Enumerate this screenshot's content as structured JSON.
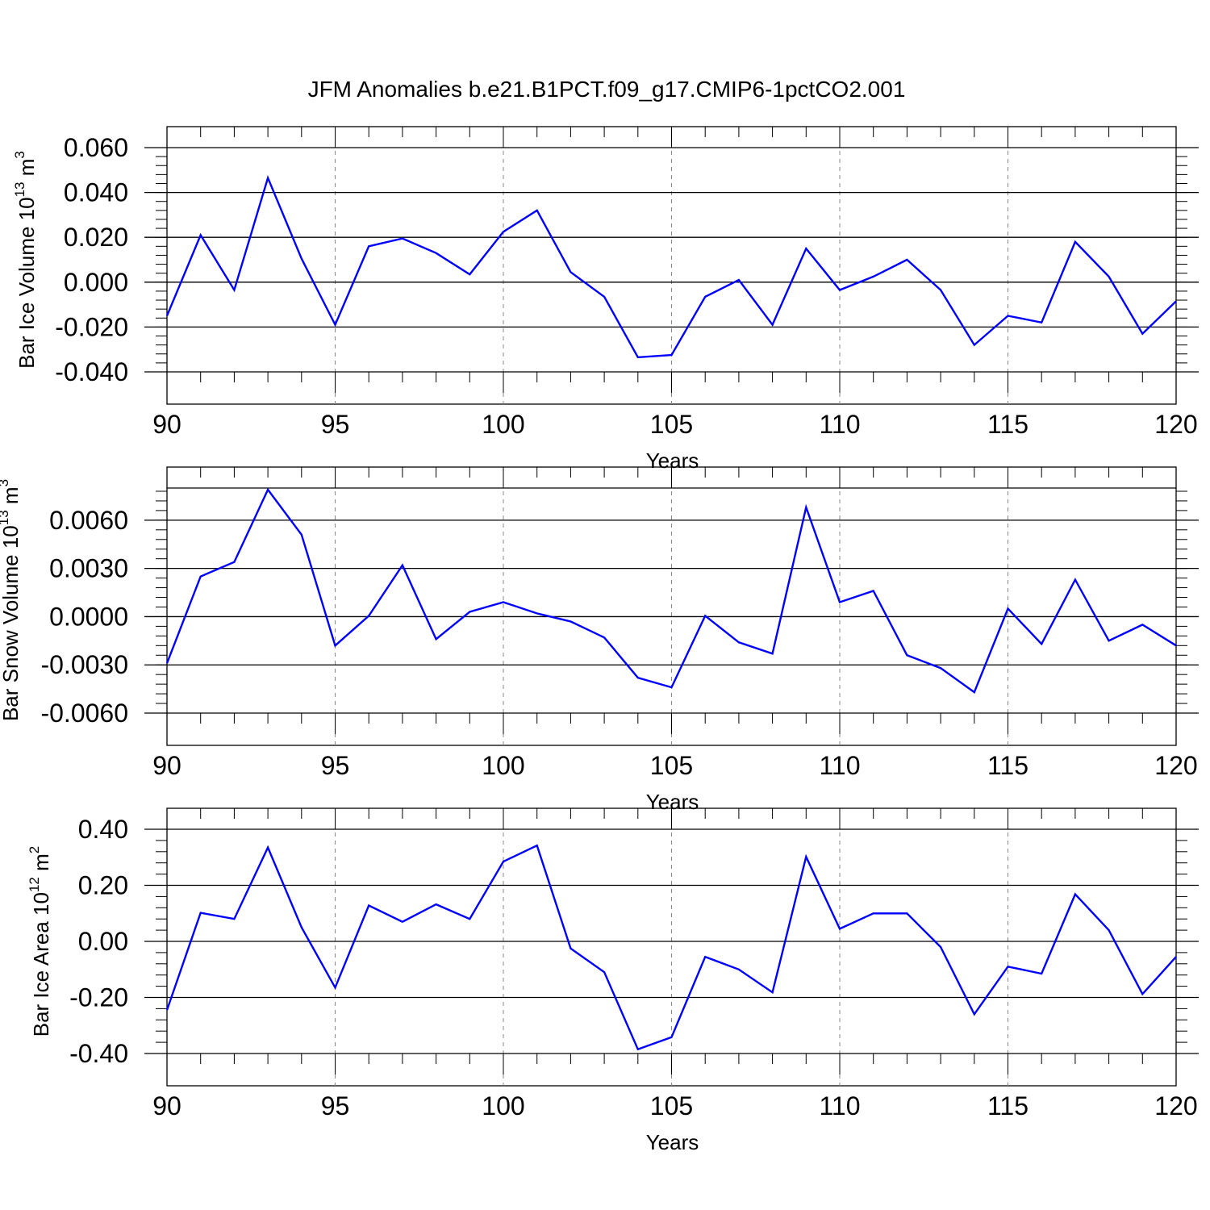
{
  "title": "JFM Anomalies b.e21.B1PCT.f09_g17.CMIP6-1pctCO2.001",
  "line_color": "#0000ff",
  "chart_data": [
    {
      "type": "line",
      "ylabel": "Bar Ice Volume",
      "ylabel_unit_base": "10",
      "ylabel_unit_exp": "13",
      "ylabel_unit_tail": " m",
      "ylabel_unit_tail_exp": "3",
      "xlabel": "Years",
      "xlim": [
        90,
        120
      ],
      "xticks": [
        90,
        95,
        100,
        105,
        110,
        115,
        120
      ],
      "ylim": [
        -0.04,
        0.06
      ],
      "yticks": [
        -0.04,
        -0.02,
        0.0,
        0.02,
        0.04,
        0.06
      ],
      "ytick_labels": [
        "-0.040",
        "-0.020",
        "0.000",
        "0.020",
        "0.040",
        "0.060"
      ],
      "x": [
        90,
        91,
        92,
        93,
        94,
        95,
        96,
        97,
        98,
        99,
        100,
        101,
        102,
        103,
        104,
        105,
        106,
        107,
        108,
        109,
        110,
        111,
        112,
        113,
        114,
        115,
        116,
        117,
        118,
        119,
        120
      ],
      "y": [
        -0.015,
        0.021,
        -0.0035,
        0.0465,
        0.0105,
        -0.019,
        0.016,
        0.0195,
        0.013,
        0.0035,
        0.0225,
        0.032,
        0.0045,
        -0.0065,
        -0.0335,
        -0.0325,
        -0.0065,
        0.001,
        -0.019,
        0.015,
        -0.0035,
        0.0025,
        0.01,
        -0.0035,
        -0.028,
        -0.015,
        -0.018,
        0.018,
        0.0025,
        -0.023,
        -0.0085
      ]
    },
    {
      "type": "line",
      "ylabel": "Bar Snow Volume",
      "ylabel_unit_base": "10",
      "ylabel_unit_exp": "13",
      "ylabel_unit_tail": " m",
      "ylabel_unit_tail_exp": "3",
      "xlabel": "Years",
      "xlim": [
        90,
        120
      ],
      "xticks": [
        90,
        95,
        100,
        105,
        110,
        115,
        120
      ],
      "ylim": [
        -0.006,
        0.008
      ],
      "yticks": [
        -0.006,
        -0.003,
        0.0,
        0.003,
        0.006
      ],
      "ytick_labels": [
        "-0.0060",
        "-0.0030",
        "0.0000",
        "0.0030",
        "0.0060"
      ],
      "x": [
        90,
        91,
        92,
        93,
        94,
        95,
        96,
        97,
        98,
        99,
        100,
        101,
        102,
        103,
        104,
        105,
        106,
        107,
        108,
        109,
        110,
        111,
        112,
        113,
        114,
        115,
        116,
        117,
        118,
        119,
        120
      ],
      "y": [
        -0.0029,
        0.0025,
        0.0034,
        0.0079,
        0.0051,
        -0.0018,
        5e-05,
        0.0032,
        -0.0014,
        0.0003,
        0.0009,
        0.0002,
        -0.0003,
        -0.0013,
        -0.0038,
        -0.0044,
        5e-05,
        -0.0016,
        -0.0023,
        0.0068,
        0.0009,
        0.0016,
        -0.0024,
        -0.0032,
        -0.0047,
        0.0005,
        -0.0017,
        0.0023,
        -0.0015,
        -0.0005,
        -0.0018
      ]
    },
    {
      "type": "line",
      "ylabel": "Bar Ice Area",
      "ylabel_unit_base": "10",
      "ylabel_unit_exp": "12",
      "ylabel_unit_tail": " m",
      "ylabel_unit_tail_exp": "2",
      "xlabel": "Years",
      "xlim": [
        90,
        120
      ],
      "xticks": [
        90,
        95,
        100,
        105,
        110,
        115,
        120
      ],
      "ylim": [
        -0.4,
        0.4
      ],
      "yticks": [
        -0.4,
        -0.2,
        0.0,
        0.2,
        0.4
      ],
      "ytick_labels": [
        "-0.40",
        "-0.20",
        "0.00",
        "0.20",
        "0.40"
      ],
      "x": [
        90,
        91,
        92,
        93,
        94,
        95,
        96,
        97,
        98,
        99,
        100,
        101,
        102,
        103,
        104,
        105,
        106,
        107,
        108,
        109,
        110,
        111,
        112,
        113,
        114,
        115,
        116,
        117,
        118,
        119,
        120
      ],
      "y": [
        -0.245,
        0.102,
        0.08,
        0.335,
        0.05,
        -0.165,
        0.128,
        0.07,
        0.132,
        0.08,
        0.285,
        0.342,
        -0.025,
        -0.11,
        -0.385,
        -0.342,
        -0.055,
        -0.1,
        -0.182,
        0.302,
        0.045,
        0.1,
        0.1,
        -0.02,
        -0.26,
        -0.09,
        -0.115,
        0.168,
        0.04,
        -0.188,
        -0.055
      ]
    }
  ]
}
